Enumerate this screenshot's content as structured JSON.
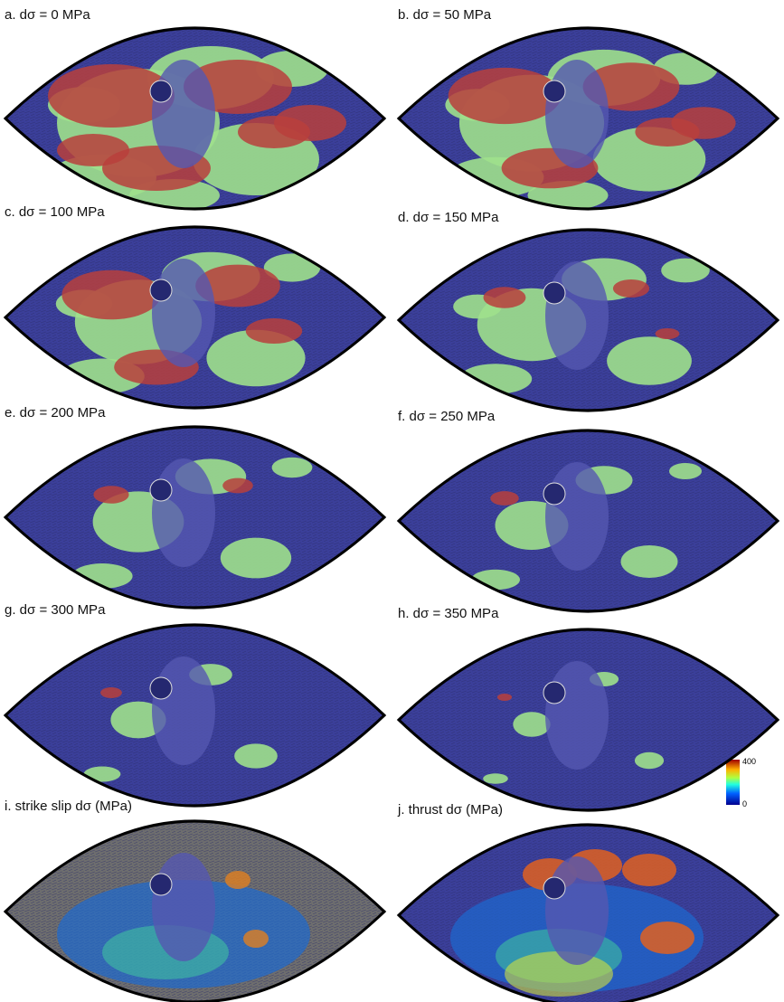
{
  "panels": [
    {
      "label": "a. dσ = 0 MPa"
    },
    {
      "label": "b. dσ = 50 MPa"
    },
    {
      "label": "c. dσ = 100 MPa"
    },
    {
      "label": "d. dσ = 150 MPa"
    },
    {
      "label": "e. dσ = 200 MPa"
    },
    {
      "label": "f. dσ = 250 MPa"
    },
    {
      "label": "g. dσ = 300 MPa"
    },
    {
      "label": "h. dσ = 350 MPa"
    },
    {
      "label": "i. strike slip dσ (MPa)"
    },
    {
      "label": "j. thrust dσ (MPa)"
    }
  ],
  "colorbar": {
    "max": "400",
    "min": "0"
  }
}
